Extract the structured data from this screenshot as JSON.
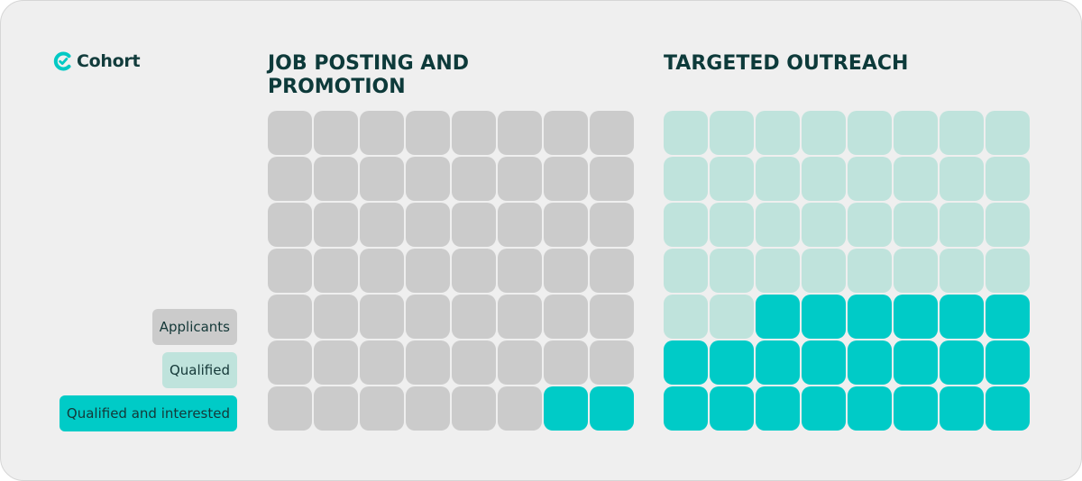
{
  "brand": {
    "name": "Cohort",
    "icon": "cohort-logo-icon",
    "color": "#00c9c4"
  },
  "colors": {
    "applicants": "#cbcbcb",
    "qualified": "#bfe3dc",
    "qualified_and_interested": "#00cbc7"
  },
  "legend": [
    {
      "key": "applicants",
      "label": "Applicants"
    },
    {
      "key": "qualified",
      "label": "Qualified"
    },
    {
      "key": "qualified_and_interested",
      "label": "Qualified and interested"
    }
  ],
  "chart_data": {
    "type": "waffle",
    "rows": 7,
    "columns": 8,
    "panels": [
      {
        "title": "JOB POSTING AND PROMOTION",
        "values": {
          "applicants": 54,
          "qualified": 0,
          "qualified_and_interested": 2
        }
      },
      {
        "title": "TARGETED OUTREACH",
        "values": {
          "applicants": 0,
          "qualified": 34,
          "qualified_and_interested": 22
        }
      }
    ]
  }
}
